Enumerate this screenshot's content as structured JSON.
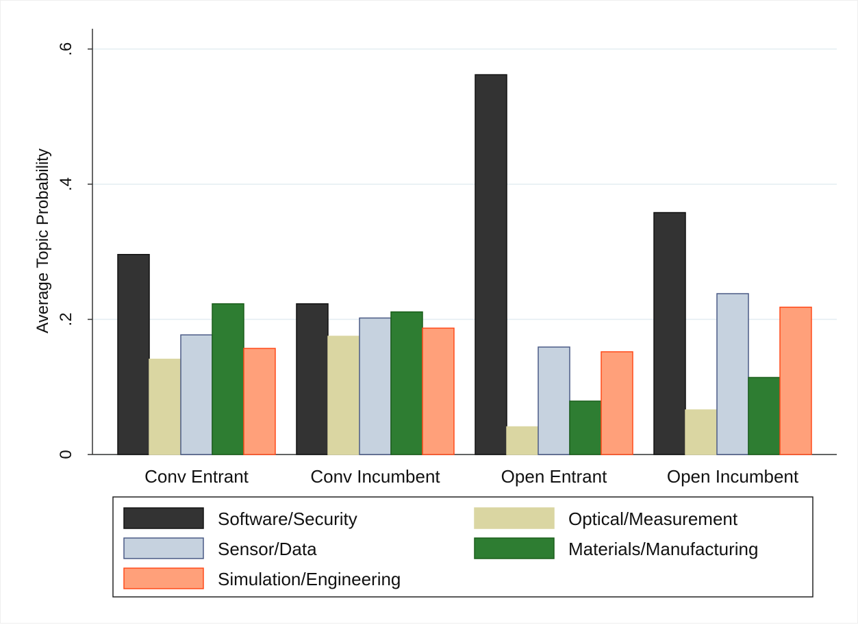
{
  "chart_data": {
    "type": "bar",
    "y_label": "Average Topic Probability",
    "categories": [
      "Conv Entrant",
      "Conv Incumbent",
      "Open Entrant",
      "Open Incumbent"
    ],
    "series": [
      {
        "name": "Software/Security",
        "color": "#333333",
        "values": [
          0.296,
          0.223,
          0.562,
          0.358
        ]
      },
      {
        "name": "Optical/Measurement",
        "color": "#dad6a2",
        "values": [
          0.141,
          0.175,
          0.041,
          0.066
        ]
      },
      {
        "name": "Sensor/Data",
        "color": "#c6d2df",
        "values": [
          0.177,
          0.202,
          0.159,
          0.238
        ]
      },
      {
        "name": "Materials/Manufacturing",
        "color": "#2e7d32",
        "values": [
          0.223,
          0.211,
          0.079,
          0.114
        ]
      },
      {
        "name": "Simulation/Engineering",
        "color": "#ffa07a",
        "values": [
          0.157,
          0.187,
          0.152,
          0.218
        ]
      }
    ],
    "ylim": [
      0,
      0.63
    ],
    "yticks": [
      0,
      {
        "value": 0.2,
        "label": ".2"
      },
      {
        "value": 0.4,
        "label": ".4"
      },
      {
        "value": 0.6,
        "label": ".6"
      }
    ],
    "grid": true,
    "legend": "bottom"
  }
}
